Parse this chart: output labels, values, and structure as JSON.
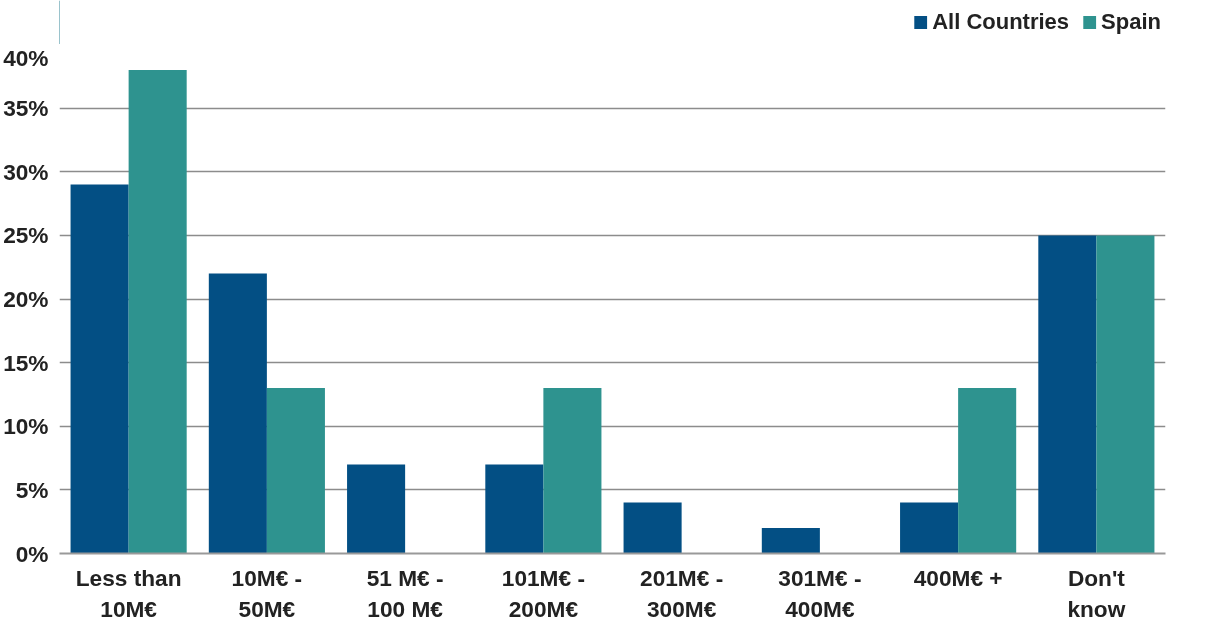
{
  "chart_data": {
    "type": "bar",
    "categories": [
      "Less than\n10M€",
      "10M€ -\n50M€",
      "51 M€ -\n100 M€",
      "101M€ -\n200M€",
      "201M€ -\n300M€",
      "301M€ -\n400M€",
      "400M€ +",
      "Don't\nknow"
    ],
    "series": [
      {
        "name": "All Countries",
        "color": "#034f84",
        "values": [
          29,
          22,
          7,
          7,
          4,
          2,
          4,
          25
        ]
      },
      {
        "name": "Spain",
        "color": "#2e938f",
        "values": [
          38,
          13,
          0,
          13,
          0,
          0,
          13,
          25
        ]
      }
    ],
    "ylim": [
      0,
      40
    ],
    "yticks": [
      {
        "value": 0,
        "label": "0%"
      },
      {
        "value": 5,
        "label": "5%"
      },
      {
        "value": 10,
        "label": "10%"
      },
      {
        "value": 15,
        "label": "15%"
      },
      {
        "value": 20,
        "label": "20%"
      },
      {
        "value": 25,
        "label": "25%"
      },
      {
        "value": 30,
        "label": "30%"
      },
      {
        "value": 35,
        "label": "35%"
      },
      {
        "value": 40,
        "label": "40%"
      }
    ],
    "grid": "y",
    "legend": "top right"
  }
}
